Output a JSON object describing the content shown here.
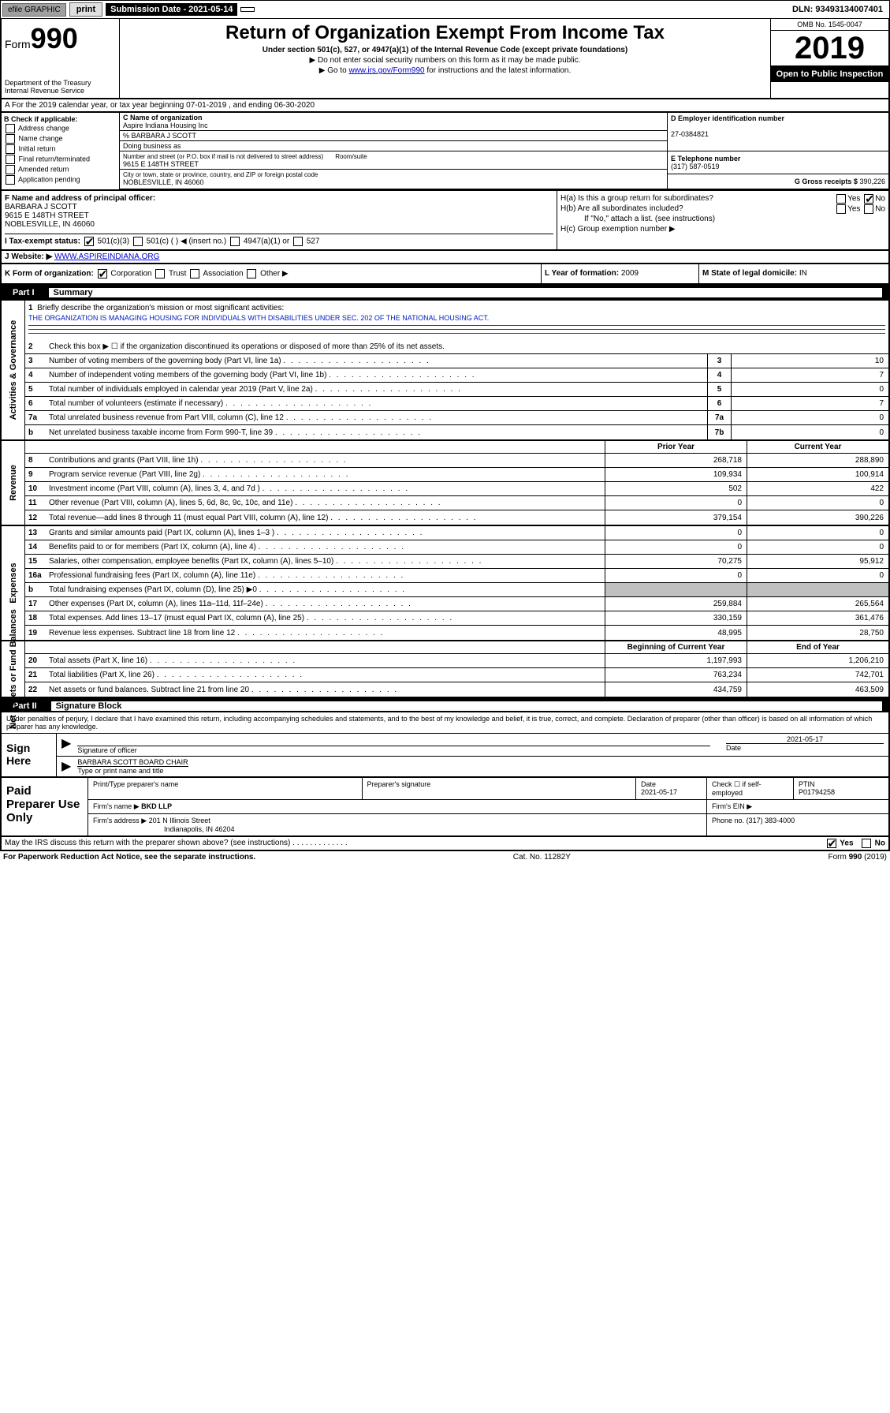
{
  "top": {
    "efile": "efile GRAPHIC",
    "print": "print",
    "sub_label": "Submission Date - 2021-05-14",
    "dln": "DLN: 93493134007401"
  },
  "header": {
    "form_label": "Form",
    "form_num": "990",
    "dept": "Department of the Treasury",
    "irs": "Internal Revenue Service",
    "title": "Return of Organization Exempt From Income Tax",
    "sub1": "Under section 501(c), 527, or 4947(a)(1) of the Internal Revenue Code (except private foundations)",
    "sub2": "▶ Do not enter social security numbers on this form as it may be made public.",
    "sub3_pre": "▶ Go to ",
    "sub3_link": "www.irs.gov/Form990",
    "sub3_post": " for instructions and the latest information.",
    "omb": "OMB No. 1545-0047",
    "year": "2019",
    "open": "Open to Public Inspection"
  },
  "a": "A For the 2019 calendar year, or tax year beginning 07-01-2019     , and ending 06-30-2020",
  "b": {
    "hdr": "B Check if applicable:",
    "opts": [
      "Address change",
      "Name change",
      "Initial return",
      "Final return/terminated",
      "Amended return",
      "Application pending"
    ]
  },
  "c": {
    "label": "C Name of organization",
    "name": "Aspire Indiana Housing Inc",
    "care_label": "% BARBARA J SCOTT",
    "dba_label": "Doing business as",
    "addr_label": "Number and street (or P.O. box if mail is not delivered to street address)",
    "addr": "9615 E 148TH STREET",
    "room_label": "Room/suite",
    "city_label": "City or town, state or province, country, and ZIP or foreign postal code",
    "city": "NOBLESVILLE, IN  46060"
  },
  "d": {
    "label": "D Employer identification number",
    "val": "27-0384821"
  },
  "e": {
    "label": "E Telephone number",
    "val": "(317) 587-0519"
  },
  "g": {
    "label": "G Gross receipts $",
    "val": "390,226"
  },
  "f": {
    "label": "F Name and address of principal officer:",
    "name": "BARBARA J SCOTT",
    "addr1": "9615 E 148TH STREET",
    "addr2": "NOBLESVILLE, IN  46060"
  },
  "h": {
    "a_label": "H(a)  Is this a group return for subordinates?",
    "b_label": "H(b)  Are all subordinates included?",
    "note": "If \"No,\" attach a list. (see instructions)",
    "c_label": "H(c)  Group exemption number ▶",
    "yes": "Yes",
    "no": "No"
  },
  "i": {
    "label": "I  Tax-exempt status:",
    "opt1": "501(c)(3)",
    "opt2": "501(c) (   ) ◀ (insert no.)",
    "opt3": "4947(a)(1) or",
    "opt4": "527"
  },
  "j": {
    "label": "J  Website: ▶",
    "val": "WWW.ASPIREINDIANA.ORG"
  },
  "k": {
    "label": "K Form of organization:",
    "opts": [
      "Corporation",
      "Trust",
      "Association",
      "Other ▶"
    ]
  },
  "l": {
    "label": "L Year of formation:",
    "val": "2009"
  },
  "m": {
    "label": "M State of legal domicile:",
    "val": "IN"
  },
  "part1": {
    "num": "Part I",
    "title": "Summary"
  },
  "summary": {
    "tabs": [
      "Activities & Governance",
      "Revenue",
      "Expenses",
      "Net Assets or Fund Balances"
    ],
    "line1_label": "Briefly describe the organization's mission or most significant activities:",
    "line1_text": "THE ORGANIZATION IS MANAGING HOUSING FOR INDIVIDUALS WITH DISABILITIES UNDER SEC. 202 OF THE NATIONAL HOUSING ACT.",
    "line2": "Check this box ▶ ☐  if the organization discontinued its operations or disposed of more than 25% of its net assets.",
    "rows_gov": [
      {
        "n": "3",
        "t": "Number of voting members of the governing body (Part VI, line 1a)",
        "b": "3",
        "v": "10"
      },
      {
        "n": "4",
        "t": "Number of independent voting members of the governing body (Part VI, line 1b)",
        "b": "4",
        "v": "7"
      },
      {
        "n": "5",
        "t": "Total number of individuals employed in calendar year 2019 (Part V, line 2a)",
        "b": "5",
        "v": "0"
      },
      {
        "n": "6",
        "t": "Total number of volunteers (estimate if necessary)",
        "b": "6",
        "v": "7"
      },
      {
        "n": "7a",
        "t": "Total unrelated business revenue from Part VIII, column (C), line 12",
        "b": "7a",
        "v": "0"
      },
      {
        "n": "b",
        "t": "Net unrelated business taxable income from Form 990-T, line 39",
        "b": "7b",
        "v": "0"
      }
    ],
    "hdr_prior": "Prior Year",
    "hdr_curr": "Current Year",
    "rows_rev": [
      {
        "n": "8",
        "t": "Contributions and grants (Part VIII, line 1h)",
        "p": "268,718",
        "c": "288,890"
      },
      {
        "n": "9",
        "t": "Program service revenue (Part VIII, line 2g)",
        "p": "109,934",
        "c": "100,914"
      },
      {
        "n": "10",
        "t": "Investment income (Part VIII, column (A), lines 3, 4, and 7d )",
        "p": "502",
        "c": "422"
      },
      {
        "n": "11",
        "t": "Other revenue (Part VIII, column (A), lines 5, 6d, 8c, 9c, 10c, and 11e)",
        "p": "0",
        "c": "0"
      },
      {
        "n": "12",
        "t": "Total revenue—add lines 8 through 11 (must equal Part VIII, column (A), line 12)",
        "p": "379,154",
        "c": "390,226"
      }
    ],
    "rows_exp": [
      {
        "n": "13",
        "t": "Grants and similar amounts paid (Part IX, column (A), lines 1–3 )",
        "p": "0",
        "c": "0"
      },
      {
        "n": "14",
        "t": "Benefits paid to or for members (Part IX, column (A), line 4)",
        "p": "0",
        "c": "0"
      },
      {
        "n": "15",
        "t": "Salaries, other compensation, employee benefits (Part IX, column (A), lines 5–10)",
        "p": "70,275",
        "c": "95,912"
      },
      {
        "n": "16a",
        "t": "Professional fundraising fees (Part IX, column (A), line 11e)",
        "p": "0",
        "c": "0"
      },
      {
        "n": "b",
        "t": "Total fundraising expenses (Part IX, column (D), line 25) ▶0",
        "p": "",
        "c": "",
        "grey": true
      },
      {
        "n": "17",
        "t": "Other expenses (Part IX, column (A), lines 11a–11d, 11f–24e)",
        "p": "259,884",
        "c": "265,564"
      },
      {
        "n": "18",
        "t": "Total expenses. Add lines 13–17 (must equal Part IX, column (A), line 25)",
        "p": "330,159",
        "c": "361,476"
      },
      {
        "n": "19",
        "t": "Revenue less expenses. Subtract line 18 from line 12",
        "p": "48,995",
        "c": "28,750"
      }
    ],
    "hdr_beg": "Beginning of Current Year",
    "hdr_end": "End of Year",
    "rows_net": [
      {
        "n": "20",
        "t": "Total assets (Part X, line 16)",
        "p": "1,197,993",
        "c": "1,206,210"
      },
      {
        "n": "21",
        "t": "Total liabilities (Part X, line 26)",
        "p": "763,234",
        "c": "742,701"
      },
      {
        "n": "22",
        "t": "Net assets or fund balances. Subtract line 21 from line 20",
        "p": "434,759",
        "c": "463,509"
      }
    ]
  },
  "part2": {
    "num": "Part II",
    "title": "Signature Block"
  },
  "sig": {
    "declare": "Under penalties of perjury, I declare that I have examined this return, including accompanying schedules and statements, and to the best of my knowledge and belief, it is true, correct, and complete. Declaration of preparer (other than officer) is based on all information of which preparer has any knowledge.",
    "sign_here": "Sign Here",
    "sig_officer": "Signature of officer",
    "date": "2021-05-17",
    "date_label": "Date",
    "name": "BARBARA SCOTT BOARD CHAIR",
    "name_label": "Type or print name and title"
  },
  "paid": {
    "label": "Paid Preparer Use Only",
    "h1": "Print/Type preparer's name",
    "h2": "Preparer's signature",
    "h3": "Date",
    "h4": "Check ☐ if self-employed",
    "h5": "PTIN",
    "date": "2021-05-17",
    "ptin": "P01794258",
    "firm_label": "Firm's name    ▶",
    "firm": "BKD LLP",
    "ein_label": "Firm's EIN ▶",
    "addr_label": "Firm's address ▶",
    "addr1": "201 N Illinois Street",
    "addr2": "Indianapolis, IN  46204",
    "phone_label": "Phone no.",
    "phone": "(317) 383-4000"
  },
  "footer": {
    "q": "May the IRS discuss this return with the preparer shown above? (see instructions)",
    "yes": "Yes",
    "no": "No",
    "pra": "For Paperwork Reduction Act Notice, see the separate instructions.",
    "cat": "Cat. No. 11282Y",
    "form": "Form 990 (2019)"
  }
}
